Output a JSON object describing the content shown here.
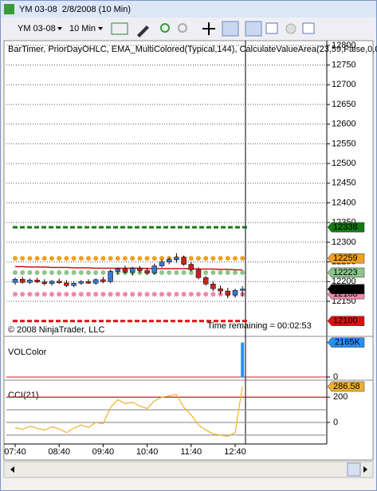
{
  "window": {
    "title": "YM 03-08  2/8/2008 (10 Min)",
    "instrument": "YM 03-08",
    "interval": "10 Min"
  },
  "chart_data": [
    {
      "type": "candlestick",
      "title": "BarTimer, PriorDayOHLC, EMA_MultiColored(Typical,144), CalculateValueArea(23,59,False,0,0,",
      "annotations": [
        "© 2008 NinjaTrader, LLC",
        "Time remaining = 00:02:53"
      ],
      "up_color": "#3a78d0",
      "down_color": "#cc2020",
      "open": [
        12198,
        12206,
        12198,
        12204,
        12199,
        12195,
        12201,
        12197,
        12190,
        12196,
        12200,
        12196,
        12205,
        12200,
        12226,
        12232,
        12224,
        12234,
        12228,
        12222,
        12240,
        12250,
        12256,
        12262,
        12244,
        12230,
        12210,
        12194,
        12182,
        12176,
        12166,
        12178
      ],
      "high": [
        12210,
        12212,
        12208,
        12210,
        12206,
        12204,
        12208,
        12204,
        12200,
        12204,
        12206,
        12208,
        12212,
        12230,
        12236,
        12240,
        12238,
        12240,
        12236,
        12246,
        12256,
        12262,
        12272,
        12266,
        12250,
        12236,
        12214,
        12200,
        12190,
        12184,
        12182,
        12188
      ],
      "low": [
        12192,
        12195,
        12194,
        12196,
        12190,
        12190,
        12194,
        12186,
        12186,
        12192,
        12194,
        12192,
        12196,
        12196,
        12218,
        12220,
        12216,
        12222,
        12218,
        12218,
        12236,
        12244,
        12248,
        12240,
        12226,
        12206,
        12190,
        12176,
        12168,
        12158,
        12160,
        12162
      ],
      "close": [
        12206,
        12198,
        12204,
        12199,
        12195,
        12201,
        12197,
        12190,
        12196,
        12200,
        12196,
        12205,
        12200,
        12226,
        12232,
        12224,
        12234,
        12228,
        12222,
        12240,
        12250,
        12256,
        12262,
        12244,
        12230,
        12210,
        12194,
        12182,
        12176,
        12166,
        12178,
        12181
      ],
      "ema": {
        "color": "#cc1010",
        "values": [
          12238,
          12238,
          12237,
          12237,
          12237,
          12236,
          12236,
          12236,
          12235,
          12235,
          12235,
          12234,
          12234,
          12234,
          12234,
          12234,
          12234,
          12234,
          12233,
          12233,
          12233,
          12233,
          12233,
          12233,
          12233,
          12232,
          12232,
          12232,
          12231,
          12231,
          12230,
          12230
        ]
      },
      "levels": [
        {
          "value": 12338,
          "color": "#127a12",
          "style": "dashed"
        },
        {
          "value": 12259,
          "color": "#f0a020",
          "style": "dots"
        },
        {
          "value": 12223,
          "color": "#8cc48c",
          "style": "dots"
        },
        {
          "value": 12168,
          "color": "#f088a8",
          "style": "dots"
        },
        {
          "value": 12100,
          "color": "#dd1010",
          "style": "dashed"
        }
      ],
      "ylim": [
        12065,
        12810
      ],
      "yticks": [
        12150,
        12200,
        12250,
        12300,
        12350,
        12400,
        12450,
        12500,
        12550,
        12600,
        12650,
        12700,
        12750,
        12800
      ],
      "grid": true
    },
    {
      "type": "bar",
      "title": "VOLColor",
      "color": "#2a90f0",
      "values": [
        0,
        0,
        0,
        0,
        0,
        0,
        0,
        0,
        0,
        0,
        0,
        0,
        0,
        0,
        0,
        0,
        0,
        0,
        0,
        0,
        0,
        0,
        0,
        0,
        0,
        0,
        0,
        0,
        0,
        0,
        0,
        2165000
      ],
      "ylim": [
        0,
        2400000
      ],
      "yticks": [
        0,
        {
          "value": 2165000,
          "label": "2165K"
        }
      ]
    },
    {
      "type": "line",
      "title": "CCI(21)",
      "color": "#f0b030",
      "categories": [
        "07:40",
        null,
        null,
        null,
        null,
        null,
        "08:40",
        null,
        null,
        null,
        null,
        null,
        "09:40",
        null,
        null,
        null,
        null,
        null,
        "10:40",
        null,
        null,
        null,
        null,
        null,
        "11:40",
        null,
        null,
        null,
        null,
        null,
        "12:40",
        null
      ],
      "values": [
        -40,
        -55,
        -30,
        -45,
        -60,
        -35,
        -50,
        -80,
        -45,
        -20,
        -40,
        0,
        -10,
        120,
        180,
        150,
        160,
        130,
        110,
        170,
        200,
        210,
        220,
        120,
        60,
        -20,
        -60,
        -90,
        -100,
        -110,
        -80,
        286.58
      ],
      "levels": [
        {
          "value": 200,
          "color": "#b02020"
        },
        {
          "value": 100,
          "color": "#999999"
        },
        {
          "value": 0,
          "color": "#999999"
        },
        {
          "value": -100,
          "color": "#999999"
        }
      ],
      "ylim": [
        -170,
        315
      ],
      "yticks": [
        0,
        200
      ]
    }
  ]
}
